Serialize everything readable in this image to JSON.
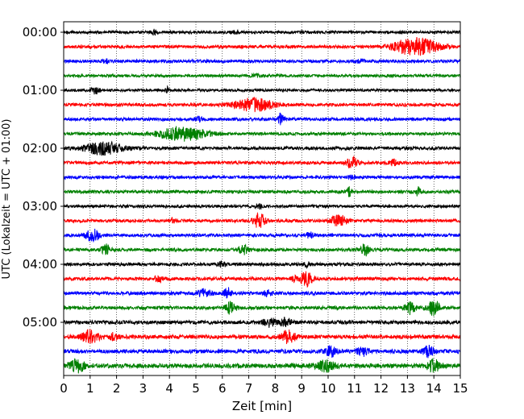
{
  "chart_data": {
    "type": "line",
    "title": "",
    "xlabel": "Zeit  [min]",
    "ylabel": "UTC (Lokalzeit = UTC + 01:00)",
    "xlim": [
      0,
      15
    ],
    "x_ticks": [
      0,
      1,
      2,
      3,
      4,
      5,
      6,
      7,
      8,
      9,
      10,
      11,
      12,
      13,
      14,
      15
    ],
    "x_tick_labels": [
      "0",
      "1",
      "2",
      "3",
      "4",
      "5",
      "6",
      "7",
      "8",
      "9",
      "10",
      "11",
      "12",
      "13",
      "14",
      "15"
    ],
    "y_tick_labels": [
      {
        "label": "00:00",
        "trace_index": 0
      },
      {
        "label": "01:00",
        "trace_index": 4
      },
      {
        "label": "02:00",
        "trace_index": 8
      },
      {
        "label": "03:00",
        "trace_index": 12
      },
      {
        "label": "04:00",
        "trace_index": 16
      },
      {
        "label": "05:00",
        "trace_index": 20
      }
    ],
    "grid": "vertical dotted at every minute",
    "trace_minutes": 15,
    "colors": [
      "#000000",
      "#ff0000",
      "#0000ff",
      "#008000"
    ],
    "color_cycle": [
      "black",
      "red",
      "blue",
      "green"
    ],
    "traces": [
      {
        "start": "00:00",
        "color": "black",
        "noise": 0.55,
        "events": [
          {
            "t": 3.4,
            "amp": 3,
            "width": 0.12
          },
          {
            "t": 6.5,
            "amp": 1.5,
            "width": 0.2
          }
        ]
      },
      {
        "start": "00:15",
        "color": "red",
        "noise": 0.6,
        "events": [
          {
            "t": 13.5,
            "amp": 9,
            "width": 0.7
          },
          {
            "t": 12.8,
            "amp": 4,
            "width": 0.5
          }
        ]
      },
      {
        "start": "00:30",
        "color": "blue",
        "noise": 0.6,
        "events": [
          {
            "t": 1.6,
            "amp": 2.2,
            "width": 0.12
          },
          {
            "t": 11.2,
            "amp": 1.8,
            "width": 0.15
          }
        ]
      },
      {
        "start": "00:45",
        "color": "green",
        "noise": 0.55,
        "events": [
          {
            "t": 7.3,
            "amp": 1.5,
            "width": 0.2
          }
        ]
      },
      {
        "start": "01:00",
        "color": "black",
        "noise": 0.5,
        "events": [
          {
            "t": 1.2,
            "amp": 4.5,
            "width": 0.15
          },
          {
            "t": 3.9,
            "amp": 4,
            "width": 0.06
          }
        ]
      },
      {
        "start": "01:15",
        "color": "red",
        "noise": 0.6,
        "events": [
          {
            "t": 7.2,
            "amp": 7.5,
            "width": 0.75
          }
        ]
      },
      {
        "start": "01:30",
        "color": "blue",
        "noise": 0.6,
        "events": [
          {
            "t": 8.2,
            "amp": 6,
            "width": 0.12
          },
          {
            "t": 5.1,
            "amp": 2.5,
            "width": 0.15
          }
        ]
      },
      {
        "start": "01:45",
        "color": "green",
        "noise": 0.55,
        "events": [
          {
            "t": 4.5,
            "amp": 8.5,
            "width": 0.9
          }
        ]
      },
      {
        "start": "02:00",
        "color": "black",
        "noise": 0.6,
        "events": [
          {
            "t": 1.5,
            "amp": 7.5,
            "width": 0.7
          }
        ]
      },
      {
        "start": "02:15",
        "color": "red",
        "noise": 0.6,
        "events": [
          {
            "t": 10.9,
            "amp": 8,
            "width": 0.18
          },
          {
            "t": 12.5,
            "amp": 4,
            "width": 0.15
          }
        ]
      },
      {
        "start": "02:30",
        "color": "blue",
        "noise": 0.6,
        "events": [
          {
            "t": 10.9,
            "amp": 2.5,
            "width": 0.12
          }
        ]
      },
      {
        "start": "02:45",
        "color": "green",
        "noise": 0.6,
        "events": [
          {
            "t": 10.8,
            "amp": 5,
            "width": 0.1
          },
          {
            "t": 13.4,
            "amp": 5,
            "width": 0.1
          }
        ]
      },
      {
        "start": "03:00",
        "color": "black",
        "noise": 0.55,
        "events": [
          {
            "t": 7.4,
            "amp": 3,
            "width": 0.12
          }
        ]
      },
      {
        "start": "03:15",
        "color": "red",
        "noise": 0.6,
        "events": [
          {
            "t": 7.4,
            "amp": 9,
            "width": 0.22
          },
          {
            "t": 10.4,
            "amp": 7,
            "width": 0.3
          },
          {
            "t": 4.1,
            "amp": 2.5,
            "width": 0.15
          }
        ]
      },
      {
        "start": "03:30",
        "color": "blue",
        "noise": 0.6,
        "events": [
          {
            "t": 1.1,
            "amp": 8,
            "width": 0.25
          },
          {
            "t": 9.3,
            "amp": 3,
            "width": 0.15
          }
        ]
      },
      {
        "start": "03:45",
        "color": "green",
        "noise": 0.6,
        "events": [
          {
            "t": 1.6,
            "amp": 6,
            "width": 0.18
          },
          {
            "t": 6.8,
            "amp": 5,
            "width": 0.2
          },
          {
            "t": 11.4,
            "amp": 7.5,
            "width": 0.15
          }
        ]
      },
      {
        "start": "04:00",
        "color": "black",
        "noise": 0.6,
        "events": [
          {
            "t": 6.0,
            "amp": 3,
            "width": 0.15
          },
          {
            "t": 9.2,
            "amp": 3,
            "width": 0.1
          }
        ]
      },
      {
        "start": "04:15",
        "color": "red",
        "noise": 0.65,
        "events": [
          {
            "t": 9.2,
            "amp": 8,
            "width": 0.25
          },
          {
            "t": 3.6,
            "amp": 4,
            "width": 0.15
          },
          {
            "t": 8.7,
            "amp": 3,
            "width": 0.1
          }
        ]
      },
      {
        "start": "04:30",
        "color": "blue",
        "noise": 0.65,
        "events": [
          {
            "t": 5.3,
            "amp": 5,
            "width": 0.25
          },
          {
            "t": 6.2,
            "amp": 6,
            "width": 0.15
          },
          {
            "t": 7.7,
            "amp": 3,
            "width": 0.15
          }
        ]
      },
      {
        "start": "04:45",
        "color": "green",
        "noise": 0.65,
        "events": [
          {
            "t": 6.3,
            "amp": 7,
            "width": 0.2
          },
          {
            "t": 13.1,
            "amp": 7,
            "width": 0.2
          },
          {
            "t": 14.0,
            "amp": 9,
            "width": 0.22
          }
        ]
      },
      {
        "start": "05:00",
        "color": "black",
        "noise": 0.7,
        "events": [
          {
            "t": 7.8,
            "amp": 5,
            "width": 0.25
          },
          {
            "t": 8.4,
            "amp": 5,
            "width": 0.2
          }
        ]
      },
      {
        "start": "05:15",
        "color": "red",
        "noise": 0.75,
        "events": [
          {
            "t": 1.0,
            "amp": 8,
            "width": 0.3
          },
          {
            "t": 8.5,
            "amp": 8.5,
            "width": 0.25
          },
          {
            "t": 1.9,
            "amp": 4,
            "width": 0.15
          }
        ]
      },
      {
        "start": "05:30",
        "color": "blue",
        "noise": 0.75,
        "events": [
          {
            "t": 10.1,
            "amp": 6,
            "width": 0.2
          },
          {
            "t": 11.3,
            "amp": 5,
            "width": 0.2
          },
          {
            "t": 13.8,
            "amp": 6,
            "width": 0.2
          }
        ]
      },
      {
        "start": "05:45",
        "color": "green",
        "noise": 0.85,
        "events": [
          {
            "t": 0.5,
            "amp": 7,
            "width": 0.3
          },
          {
            "t": 9.9,
            "amp": 6,
            "width": 0.35
          },
          {
            "t": 14.0,
            "amp": 7,
            "width": 0.25
          }
        ]
      }
    ]
  }
}
